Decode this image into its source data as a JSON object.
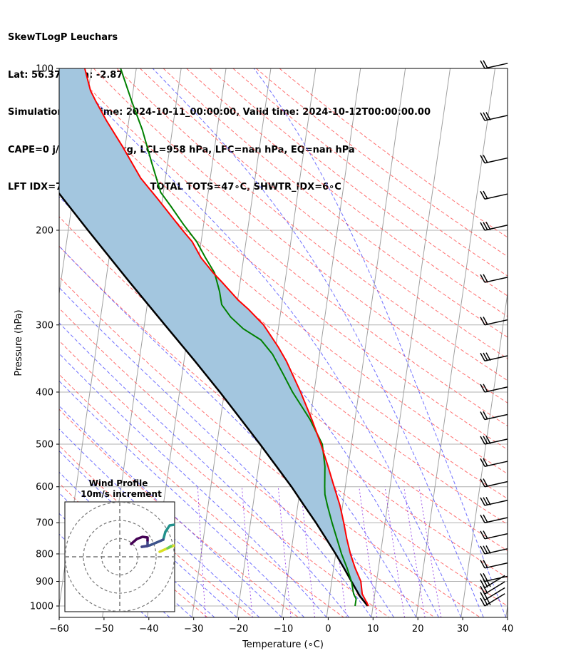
{
  "header": {
    "line1": "SkewTLogP Leuchars",
    "line2": "Lat: 56.37   Lon: -2.87",
    "line3": "Simulation start time: 2024-10-11_00:00:00, Valid time: 2024-10-12T00:00:00.00",
    "line4": "CAPE=0 j/kg, CIN=0 j/kg, LCL=958 hPa, LFC=nan hPa, EQ=nan hPa",
    "line5": "LFT IDX=7∘C, K IDX=19∘C, TOTAL TOTS=47∘C, SHWTR_IDX=6∘C"
  },
  "inset": {
    "title_line1": "Wind Profile",
    "title_line2": "10m/s increment"
  },
  "colors": {
    "temperature": "#ff0000",
    "dewpoint": "#008000",
    "parcel": "#000000",
    "cape_fill": "#a3c6df",
    "dry_adiabat": "#ff4c4c",
    "moist_adiabat": "#4c4cff",
    "mixing_ratio": "#8a2be2",
    "isotherm": "#a0a0a0",
    "barb": "#000000"
  },
  "chart_data": {
    "type": "line",
    "xlabel": "Temperature (∘C)",
    "ylabel": "Pressure (hPa)",
    "xlim": [
      -60,
      40
    ],
    "ylim": [
      1050,
      100
    ],
    "yscale": "log",
    "x_ticks": [
      "−60",
      "−50",
      "−40",
      "−30",
      "−20",
      "−10",
      "0",
      "10",
      "20",
      "30",
      "40"
    ],
    "y_ticks": [
      "100",
      "200",
      "300",
      "400",
      "500",
      "600",
      "700",
      "800",
      "900",
      "1000"
    ],
    "grid": true,
    "series": [
      {
        "name": "temperature",
        "points": [
          [
            1000,
            9.0
          ],
          [
            950,
            7.2
          ],
          [
            900,
            6.5
          ],
          [
            850,
            4.8
          ],
          [
            800,
            3.3
          ],
          [
            750,
            2.0
          ],
          [
            700,
            0.8
          ],
          [
            650,
            -0.6
          ],
          [
            600,
            -2.5
          ],
          [
            550,
            -4.5
          ],
          [
            500,
            -6.8
          ],
          [
            450,
            -9.6
          ],
          [
            400,
            -13.0
          ],
          [
            350,
            -17.2
          ],
          [
            330,
            -19.4
          ],
          [
            300,
            -23.4
          ],
          [
            280,
            -27.4
          ],
          [
            270,
            -29.8
          ],
          [
            250,
            -34.0
          ],
          [
            240,
            -36.3
          ],
          [
            225,
            -39.5
          ],
          [
            210,
            -42.0
          ],
          [
            200,
            -44.5
          ],
          [
            190,
            -47.0
          ],
          [
            175,
            -51.0
          ],
          [
            160,
            -55.5
          ],
          [
            140,
            -60.5
          ],
          [
            125,
            -65.0
          ],
          [
            115,
            -68.0
          ],
          [
            110,
            -69.5
          ],
          [
            100,
            -71.5
          ]
        ]
      },
      {
        "name": "dewpoint",
        "points": [
          [
            1000,
            6.0
          ],
          [
            970,
            6.0
          ],
          [
            950,
            5.3
          ],
          [
            900,
            4.4
          ],
          [
            850,
            3.0
          ],
          [
            800,
            1.3
          ],
          [
            750,
            -0.2
          ],
          [
            700,
            -1.8
          ],
          [
            650,
            -3.4
          ],
          [
            620,
            -4.3
          ],
          [
            600,
            -4.6
          ],
          [
            550,
            -5.2
          ],
          [
            500,
            -6.5
          ],
          [
            450,
            -10.0
          ],
          [
            400,
            -14.8
          ],
          [
            370,
            -17.5
          ],
          [
            340,
            -20.5
          ],
          [
            320,
            -23.5
          ],
          [
            305,
            -27.8
          ],
          [
            290,
            -31.0
          ],
          [
            275,
            -33.4
          ],
          [
            260,
            -34.3
          ],
          [
            240,
            -36.0
          ],
          [
            225,
            -38.5
          ],
          [
            210,
            -41.0
          ],
          [
            195,
            -44.5
          ],
          [
            180,
            -48.0
          ],
          [
            170,
            -50.6
          ],
          [
            150,
            -53.5
          ],
          [
            130,
            -56.7
          ],
          [
            115,
            -60.0
          ],
          [
            100,
            -63.5
          ]
        ]
      },
      {
        "name": "parcel",
        "points": [
          [
            1000,
            8.8
          ],
          [
            960,
            6.8
          ],
          [
            950,
            6.4
          ],
          [
            900,
            4.4
          ],
          [
            850,
            2.3
          ],
          [
            800,
            0.0
          ],
          [
            750,
            -2.6
          ],
          [
            700,
            -5.4
          ],
          [
            650,
            -8.6
          ],
          [
            600,
            -12.0
          ],
          [
            550,
            -16.0
          ],
          [
            500,
            -20.4
          ],
          [
            450,
            -25.4
          ],
          [
            400,
            -31.0
          ],
          [
            350,
            -37.6
          ],
          [
            300,
            -45.4
          ],
          [
            250,
            -54.6
          ],
          [
            200,
            -65.6
          ],
          [
            150,
            -79.5
          ],
          [
            125,
            -88.0
          ],
          [
            100,
            -98.5
          ]
        ]
      }
    ],
    "wind_barbs_pressure": [
      1000,
      975,
      950,
      925,
      900,
      850,
      800,
      750,
      700,
      650,
      600,
      550,
      500,
      450,
      400,
      350,
      300,
      250,
      200,
      175,
      150,
      125,
      100
    ],
    "hodograph": {
      "range_ms": 40,
      "ring_increment_ms": 10,
      "title": "Wind Profile",
      "subtitle": "10m/s increment"
    }
  }
}
